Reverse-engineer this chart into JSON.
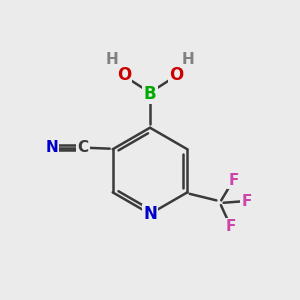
{
  "background_color": "#ebebeb",
  "bond_color": "#3a3a3a",
  "atom_colors": {
    "B": "#00aa00",
    "O": "#cc0000",
    "H": "#808080",
    "N_ring": "#0000cc",
    "C": "#3a3a3a",
    "N_cyano": "#0000cc",
    "F": "#cc44aa"
  },
  "figsize": [
    3.0,
    3.0
  ],
  "dpi": 100
}
